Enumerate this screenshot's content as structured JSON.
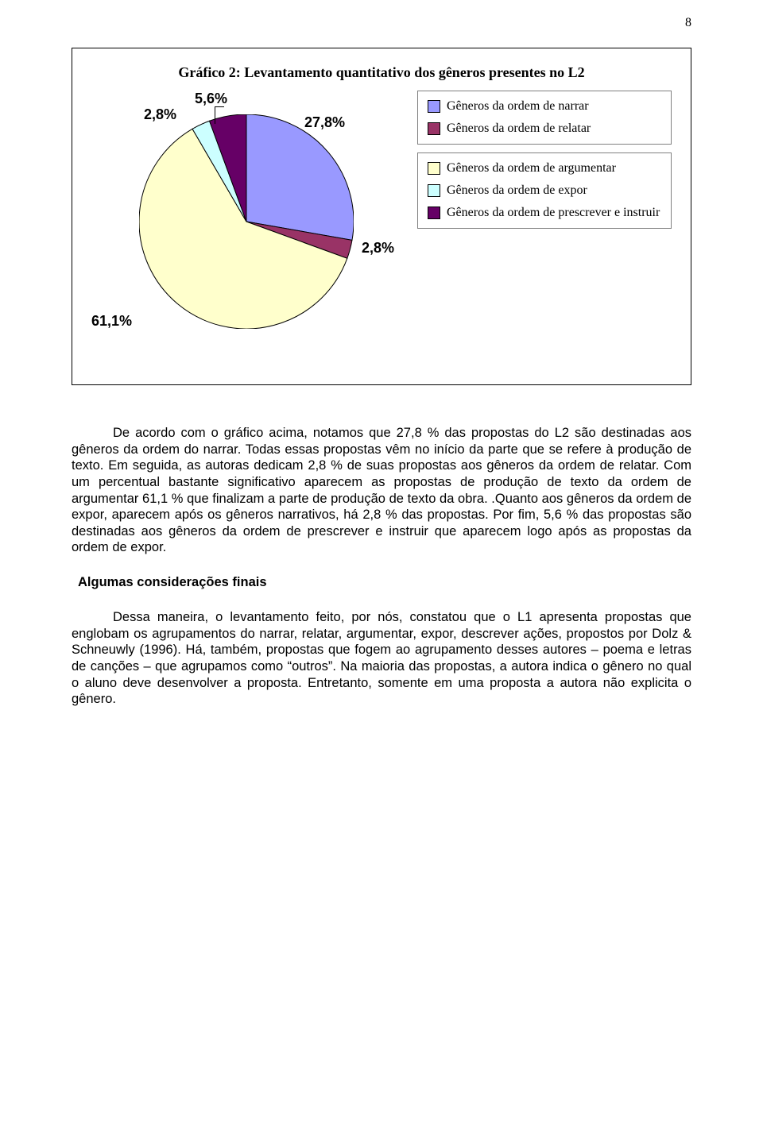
{
  "page_number": "8",
  "chart": {
    "type": "pie",
    "title": "Gráfico 2: Levantamento quantitativo dos gêneros presentes no L2",
    "radius": 135,
    "border_color": "#000000",
    "slices": [
      {
        "label": "27,8%",
        "value": 27.8,
        "color": "#9999ff"
      },
      {
        "label": "2,8%",
        "value": 2.8,
        "color": "#993366"
      },
      {
        "label": "61,1%",
        "value": 61.1,
        "color": "#ffffcc"
      },
      {
        "label": "2,8%",
        "value": 2.8,
        "color": "#ccffff"
      },
      {
        "label": "5,6%",
        "value": 5.6,
        "color": "#660066"
      }
    ],
    "data_label_color": "#000000",
    "data_label_fontsize": 18,
    "legend": {
      "border_color": "#808080",
      "background": "#ffffff",
      "swatch_border": "#000000",
      "label_fontsize": 16,
      "items": [
        {
          "text": "Gêneros da ordem de narrar",
          "color": "#9999ff"
        },
        {
          "text": "Gêneros da ordem de relatar",
          "color": "#993366"
        },
        {
          "text": "Gêneros da ordem de argumentar",
          "color": "#ffffcc"
        },
        {
          "text": "Gêneros da ordem de expor",
          "color": "#ccffff"
        },
        {
          "text": "Gêneros da ordem de prescrever e instruir",
          "color": "#660066"
        }
      ]
    }
  },
  "paragraphs": {
    "p1": "De acordo com o gráfico acima, notamos que 27,8 % das propostas do L2 são destinadas aos gêneros da ordem do narrar. Todas essas propostas vêm no  início da parte que se refere à  produção de texto. Em seguida, as autoras dedicam 2,8 % de suas propostas aos gêneros da ordem de relatar. Com um percentual bastante significativo aparecem as propostas de produção de texto da ordem de argumentar 61,1 % que finalizam a parte de produção de texto da obra. .Quanto aos gêneros da ordem de expor, aparecem após os gêneros narrativos,  há 2,8 % das propostas. Por fim, 5,6 % das propostas são destinadas aos gêneros da ordem de prescrever e instruir que aparecem logo após as propostas da ordem de expor.",
    "heading": "Algumas considerações finais",
    "p2": "Dessa maneira, o levantamento feito, por nós, constatou que o L1 apresenta propostas que  englobam os agrupamentos do narrar, relatar, argumentar, expor, descrever ações,  propostos por Dolz & Schneuwly (1996). Há, também, propostas que fogem ao agrupamento desses autores – poema e letras de canções – que agrupamos como “outros”. Na maioria das propostas, a autora indica o gênero no qual o aluno deve desenvolver a proposta. Entretanto, somente em uma proposta a autora não explicita o gênero."
  }
}
